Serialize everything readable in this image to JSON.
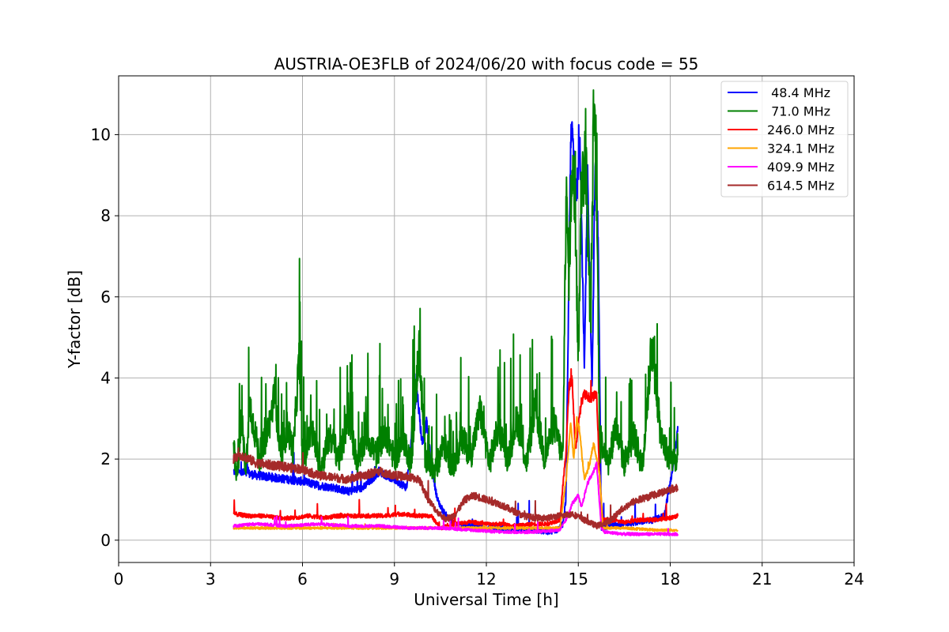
{
  "chart_data": {
    "type": "line",
    "title": "AUSTRIA-OE3FLB of 2024/06/20 with focus code = 55",
    "xlabel": "Universal Time [h]",
    "ylabel": "Y-factor [dB]",
    "xlim": [
      0,
      24
    ],
    "ylim": [
      -0.55,
      11.45
    ],
    "xticks": [
      0,
      3,
      6,
      9,
      12,
      15,
      18,
      21,
      24
    ],
    "xtick_labels": [
      "0",
      "3",
      "6",
      "9",
      "12",
      "15",
      "18",
      "21",
      "24"
    ],
    "yticks": [
      0,
      2,
      4,
      6,
      8,
      10
    ],
    "ytick_labels": [
      "0",
      "2",
      "4",
      "6",
      "8",
      "10"
    ],
    "grid": true,
    "legend_position": "top-right",
    "series": [
      {
        "name": " 48.4 MHz",
        "color": "#0000ff",
        "x": [
          3.75,
          4.5,
          5.0,
          5.5,
          6.0,
          6.5,
          7.0,
          7.5,
          8.0,
          8.5,
          9.0,
          9.4,
          9.65,
          9.75,
          9.9,
          10.05,
          10.2,
          10.4,
          10.6,
          10.8,
          11.0,
          11.5,
          12.0,
          12.5,
          13.0,
          13.5,
          14.0,
          14.3,
          14.5,
          14.6,
          14.75,
          14.8,
          14.95,
          15.05,
          15.2,
          15.3,
          15.45,
          15.55,
          15.65,
          15.75,
          16.0,
          16.5,
          17.0,
          17.5,
          17.8,
          18.0,
          18.25
        ],
        "y": [
          1.7,
          1.6,
          1.55,
          1.5,
          1.45,
          1.35,
          1.3,
          1.2,
          1.3,
          1.7,
          1.5,
          1.3,
          3.3,
          3.6,
          2.4,
          2.9,
          1.9,
          1.0,
          0.7,
          0.5,
          0.4,
          0.35,
          0.3,
          0.3,
          0.25,
          0.25,
          0.2,
          0.25,
          0.4,
          1.0,
          9.8,
          10.1,
          8.5,
          10.0,
          4.2,
          9.0,
          3.8,
          9.3,
          7.5,
          0.3,
          0.35,
          0.4,
          0.45,
          0.5,
          0.6,
          1.4,
          2.7
        ]
      },
      {
        "name": " 71.0 MHz",
        "color": "#008000",
        "x": [
          3.75,
          3.85,
          4.0,
          4.15,
          4.3,
          4.6,
          4.9,
          5.1,
          5.3,
          5.5,
          5.7,
          5.9,
          6.0,
          6.3,
          6.6,
          6.9,
          7.2,
          7.5,
          7.8,
          8.1,
          8.4,
          8.7,
          9.0,
          9.3,
          9.55,
          9.8,
          10.0,
          10.3,
          10.6,
          10.9,
          11.2,
          11.5,
          11.8,
          12.1,
          12.4,
          12.7,
          13.0,
          13.3,
          13.6,
          13.9,
          14.2,
          14.5,
          14.6,
          14.7,
          14.8,
          14.9,
          15.0,
          15.1,
          15.25,
          15.4,
          15.5,
          15.6,
          15.7,
          15.8,
          16.0,
          16.2,
          16.5,
          16.8,
          17.1,
          17.4,
          17.7,
          18.0,
          18.25
        ],
        "y": [
          2.3,
          1.5,
          2.9,
          1.8,
          3.3,
          2.0,
          2.8,
          3.6,
          1.9,
          2.8,
          2.2,
          4.6,
          1.9,
          2.7,
          1.8,
          2.6,
          2.0,
          3.0,
          1.9,
          2.6,
          2.1,
          2.7,
          2.0,
          2.5,
          1.9,
          4.8,
          2.1,
          1.6,
          2.4,
          1.8,
          2.5,
          2.1,
          3.2,
          1.9,
          2.8,
          2.0,
          3.0,
          1.9,
          3.3,
          2.0,
          2.9,
          2.0,
          8.5,
          6.5,
          9.5,
          8.0,
          4.5,
          8.8,
          9.3,
          5.0,
          10.5,
          8.6,
          2.2,
          2.4,
          1.9,
          2.8,
          1.9,
          2.6,
          1.8,
          4.9,
          2.5,
          2.0,
          1.9
        ]
      },
      {
        "name": "246.0 MHz",
        "color": "#ff0000",
        "x": [
          3.75,
          4.2,
          4.7,
          5.2,
          5.7,
          6.2,
          6.7,
          7.2,
          7.7,
          8.2,
          8.7,
          9.2,
          9.7,
          10.2,
          10.5,
          11.0,
          11.5,
          12.0,
          12.5,
          13.0,
          13.5,
          14.0,
          14.4,
          14.6,
          14.7,
          14.8,
          14.9,
          15.0,
          15.1,
          15.2,
          15.4,
          15.6,
          15.7,
          15.8,
          16.0,
          16.5,
          17.0,
          17.5,
          18.0,
          18.25
        ],
        "y": [
          0.65,
          0.6,
          0.6,
          0.55,
          0.55,
          0.6,
          0.55,
          0.6,
          0.6,
          0.6,
          0.6,
          0.65,
          0.6,
          0.6,
          0.3,
          0.4,
          0.45,
          0.4,
          0.4,
          0.35,
          0.4,
          0.4,
          0.5,
          2.2,
          3.8,
          4.0,
          2.2,
          2.8,
          3.4,
          3.6,
          3.5,
          3.6,
          1.5,
          0.5,
          0.5,
          0.45,
          0.5,
          0.5,
          0.55,
          0.6
        ]
      },
      {
        "name": "324.1 MHz",
        "color": "#ffa500",
        "x": [
          3.75,
          4.5,
          5.5,
          6.5,
          7.5,
          8.5,
          9.5,
          10.5,
          11.5,
          12.5,
          13.5,
          14.4,
          14.6,
          14.75,
          14.85,
          14.95,
          15.05,
          15.2,
          15.35,
          15.5,
          15.6,
          15.7,
          15.8,
          16.5,
          17.5,
          18.25
        ],
        "y": [
          0.3,
          0.3,
          0.3,
          0.3,
          0.3,
          0.3,
          0.3,
          0.3,
          0.3,
          0.3,
          0.3,
          0.3,
          1.5,
          2.9,
          2.0,
          3.0,
          2.6,
          1.5,
          1.8,
          2.4,
          2.0,
          1.6,
          0.3,
          0.3,
          0.25,
          0.25
        ]
      },
      {
        "name": "409.9 MHz",
        "color": "#ff00ff",
        "x": [
          3.75,
          4.5,
          5.5,
          6.5,
          7.5,
          8.5,
          9.5,
          10.5,
          11.5,
          12.5,
          13.5,
          14.4,
          14.6,
          14.8,
          15.0,
          15.1,
          15.3,
          15.5,
          15.6,
          15.75,
          15.85,
          16.5,
          17.5,
          18.25
        ],
        "y": [
          0.35,
          0.4,
          0.35,
          0.4,
          0.35,
          0.35,
          0.3,
          0.3,
          0.25,
          0.2,
          0.2,
          0.25,
          0.5,
          0.9,
          1.1,
          0.8,
          1.4,
          1.7,
          1.9,
          0.3,
          0.2,
          0.15,
          0.15,
          0.15
        ]
      },
      {
        "name": "614.5 MHz",
        "color": "#a52a2a",
        "x": [
          3.75,
          4.0,
          4.5,
          5.0,
          5.5,
          6.0,
          6.5,
          7.0,
          7.5,
          8.0,
          8.5,
          9.0,
          9.5,
          9.8,
          10.1,
          10.4,
          10.7,
          11.0,
          11.3,
          11.6,
          12.0,
          12.4,
          12.8,
          13.2,
          13.6,
          14.0,
          14.4,
          14.8,
          15.2,
          15.6,
          16.0,
          16.4,
          16.8,
          17.2,
          17.6,
          18.0,
          18.25
        ],
        "y": [
          2.0,
          2.1,
          1.9,
          1.85,
          1.8,
          1.75,
          1.6,
          1.55,
          1.5,
          1.6,
          1.7,
          1.6,
          1.55,
          1.5,
          1.0,
          0.7,
          0.5,
          0.65,
          1.0,
          1.1,
          1.0,
          0.9,
          0.75,
          0.6,
          0.55,
          0.55,
          0.6,
          0.65,
          0.5,
          0.35,
          0.45,
          0.75,
          0.95,
          1.05,
          1.15,
          1.25,
          1.3
        ]
      }
    ]
  }
}
